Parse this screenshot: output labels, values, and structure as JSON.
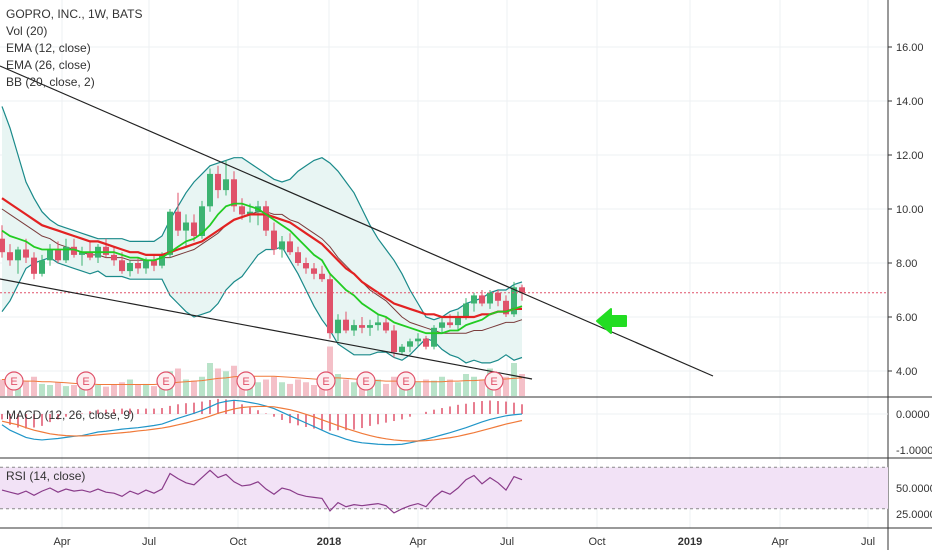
{
  "legend": {
    "symbol": "GOPRO, INC., 1W, BATS",
    "vol": "Vol (20)",
    "ema12": "EMA (12, close)",
    "ema26": "EMA (26, close)",
    "bb": "BB (20, close, 2)"
  },
  "macd_label": "MACD (12, 26, close, 9)",
  "rsi_label": "RSI (14, close)",
  "earnings_marker": "E",
  "colors": {
    "up": "#3cb371",
    "down": "#e0526a",
    "ema12": "#22cc22",
    "ema26": "#e22222",
    "bb": "#1a8a8a",
    "bb_fill": "#e8f5f3",
    "macd": "#2196c8",
    "signal": "#f07a3a",
    "rsi": "#8a3c8a",
    "rsi_band": "#f2e2f6",
    "arrow": "#22dd22",
    "price_line": "#e0526a"
  },
  "chart_data": {
    "type": "candlestick",
    "x_axis_ticks": [
      "Apr",
      "Jul",
      "Oct",
      "2018",
      "Apr",
      "Jul",
      "Oct",
      "2019",
      "Apr",
      "Jul"
    ],
    "price_axis": {
      "ticks": [
        "16.00",
        "14.00",
        "12.00",
        "10.00",
        "8.00",
        "6.00",
        "4.00"
      ],
      "range": [
        3.0,
        17.9
      ]
    },
    "macd_axis": {
      "ticks": [
        "0.0000",
        "-1.0000"
      ]
    },
    "rsi_axis": {
      "ticks": [
        "50.0000",
        "25.0000"
      ],
      "band": [
        30,
        70
      ]
    },
    "current_price": 6.9,
    "candles": [
      [
        8.9,
        9.4,
        8.2,
        8.4
      ],
      [
        8.4,
        8.7,
        7.9,
        8.1
      ],
      [
        8.1,
        8.6,
        7.6,
        8.5
      ],
      [
        8.5,
        8.9,
        8.0,
        8.2
      ],
      [
        8.2,
        8.4,
        7.4,
        7.6
      ],
      [
        7.6,
        8.3,
        7.5,
        8.1
      ],
      [
        8.1,
        8.7,
        7.9,
        8.5
      ],
      [
        8.5,
        8.8,
        8.0,
        8.1
      ],
      [
        8.1,
        8.9,
        8.0,
        8.6
      ],
      [
        8.6,
        8.9,
        8.2,
        8.3
      ],
      [
        8.3,
        8.6,
        7.9,
        8.4
      ],
      [
        8.4,
        8.8,
        8.1,
        8.2
      ],
      [
        8.2,
        8.7,
        8.0,
        8.6
      ],
      [
        8.6,
        8.9,
        8.2,
        8.3
      ],
      [
        8.3,
        8.6,
        7.9,
        8.1
      ],
      [
        8.1,
        8.4,
        7.6,
        7.7
      ],
      [
        7.7,
        8.1,
        7.5,
        8.0
      ],
      [
        8.0,
        8.2,
        7.6,
        7.8
      ],
      [
        7.8,
        8.2,
        7.6,
        8.1
      ],
      [
        8.1,
        8.3,
        7.7,
        7.9
      ],
      [
        7.9,
        8.4,
        7.8,
        8.3
      ],
      [
        8.3,
        10.0,
        8.2,
        9.9
      ],
      [
        9.9,
        10.6,
        9.0,
        9.2
      ],
      [
        9.2,
        9.8,
        8.6,
        9.5
      ],
      [
        9.5,
        9.8,
        8.8,
        9.0
      ],
      [
        9.0,
        10.3,
        8.9,
        10.1
      ],
      [
        10.1,
        11.5,
        9.9,
        11.3
      ],
      [
        11.3,
        11.6,
        10.4,
        10.7
      ],
      [
        10.7,
        11.8,
        10.5,
        11.1
      ],
      [
        11.1,
        11.4,
        9.9,
        10.1
      ],
      [
        10.1,
        10.4,
        9.6,
        9.8
      ],
      [
        9.8,
        10.2,
        9.5,
        9.9
      ],
      [
        9.9,
        10.3,
        9.4,
        10.1
      ],
      [
        10.1,
        10.3,
        9.0,
        9.2
      ],
      [
        9.2,
        9.5,
        8.3,
        8.5
      ],
      [
        8.5,
        9.0,
        8.2,
        8.8
      ],
      [
        8.8,
        9.1,
        8.3,
        8.4
      ],
      [
        8.4,
        8.6,
        7.9,
        8.0
      ],
      [
        8.0,
        8.2,
        7.6,
        7.8
      ],
      [
        7.8,
        8.0,
        7.4,
        7.6
      ],
      [
        7.6,
        7.9,
        7.3,
        7.4
      ],
      [
        7.4,
        7.6,
        5.2,
        5.4
      ],
      [
        5.4,
        6.1,
        5.1,
        5.9
      ],
      [
        5.9,
        6.2,
        5.4,
        5.5
      ],
      [
        5.5,
        5.9,
        5.3,
        5.7
      ],
      [
        5.7,
        6.0,
        5.4,
        5.6
      ],
      [
        5.6,
        5.9,
        5.3,
        5.7
      ],
      [
        5.7,
        6.1,
        5.5,
        5.8
      ],
      [
        5.8,
        6.0,
        5.4,
        5.5
      ],
      [
        5.5,
        5.7,
        4.5,
        4.7
      ],
      [
        4.7,
        5.0,
        4.6,
        4.9
      ],
      [
        4.9,
        5.2,
        4.7,
        5.1
      ],
      [
        5.1,
        5.4,
        4.9,
        5.2
      ],
      [
        5.2,
        5.3,
        4.8,
        4.9
      ],
      [
        4.9,
        5.7,
        4.8,
        5.6
      ],
      [
        5.6,
        6.0,
        5.4,
        5.8
      ],
      [
        5.8,
        6.1,
        5.6,
        5.7
      ],
      [
        5.7,
        6.2,
        5.5,
        6.0
      ],
      [
        6.0,
        6.7,
        5.9,
        6.5
      ],
      [
        6.5,
        6.9,
        6.2,
        6.8
      ],
      [
        6.8,
        7.0,
        6.4,
        6.5
      ],
      [
        6.5,
        7.0,
        6.3,
        6.9
      ],
      [
        6.9,
        7.0,
        6.4,
        6.6
      ],
      [
        6.6,
        6.8,
        6.0,
        6.1
      ],
      [
        6.1,
        7.3,
        6.0,
        7.1
      ],
      [
        7.1,
        7.2,
        6.6,
        6.9
      ]
    ],
    "ema12": [
      9.2,
      9.0,
      8.9,
      8.8,
      8.6,
      8.5,
      8.5,
      8.5,
      8.5,
      8.5,
      8.4,
      8.4,
      8.4,
      8.4,
      8.4,
      8.3,
      8.2,
      8.2,
      8.1,
      8.1,
      8.2,
      8.4,
      8.6,
      8.8,
      8.9,
      9.1,
      9.4,
      9.8,
      10.1,
      10.2,
      10.2,
      10.1,
      10.0,
      9.8,
      9.6,
      9.4,
      9.2,
      8.9,
      8.6,
      8.3,
      8.1,
      7.6,
      7.3,
      7.0,
      6.8,
      6.5,
      6.3,
      6.1,
      6.0,
      5.8,
      5.7,
      5.6,
      5.5,
      5.4,
      5.4,
      5.4,
      5.5,
      5.5,
      5.7,
      5.8,
      5.9,
      6.1,
      6.2,
      6.2,
      6.3,
      6.4
    ],
    "ema26": [
      10.4,
      10.2,
      10.0,
      9.8,
      9.6,
      9.4,
      9.3,
      9.2,
      9.1,
      9.0,
      8.9,
      8.8,
      8.8,
      8.7,
      8.6,
      8.5,
      8.4,
      8.4,
      8.3,
      8.3,
      8.3,
      8.4,
      8.5,
      8.6,
      8.7,
      8.8,
      9.0,
      9.2,
      9.4,
      9.6,
      9.7,
      9.8,
      9.8,
      9.8,
      9.7,
      9.6,
      9.5,
      9.3,
      9.1,
      8.9,
      8.7,
      8.4,
      8.1,
      7.8,
      7.6,
      7.3,
      7.1,
      6.9,
      6.7,
      6.5,
      6.4,
      6.3,
      6.2,
      6.1,
      6.1,
      6.0,
      6.0,
      6.0,
      6.0,
      6.0,
      6.1,
      6.1,
      6.2,
      6.2,
      6.3,
      6.3
    ],
    "bb_basis": [
      10.0,
      9.8,
      9.6,
      9.4,
      9.2,
      9.0,
      8.9,
      8.7,
      8.6,
      8.5,
      8.4,
      8.3,
      8.3,
      8.2,
      8.2,
      8.2,
      8.1,
      8.1,
      8.1,
      8.1,
      8.2,
      8.2,
      8.3,
      8.4,
      8.5,
      8.7,
      8.9,
      9.1,
      9.4,
      9.6,
      9.7,
      9.8,
      9.9,
      9.9,
      9.8,
      9.8,
      9.6,
      9.5,
      9.3,
      9.1,
      8.9,
      8.6,
      8.2,
      7.9,
      7.6,
      7.3,
      7.0,
      6.8,
      6.6,
      6.3,
      6.0,
      5.8,
      5.7,
      5.6,
      5.5,
      5.4,
      5.4,
      5.4,
      5.4,
      5.5,
      5.5,
      5.6,
      5.7,
      5.8,
      5.8,
      5.9
    ],
    "bb_upper": [
      13.8,
      13.0,
      12.0,
      11.0,
      10.4,
      9.9,
      9.6,
      9.4,
      9.3,
      9.2,
      9.1,
      9.0,
      8.9,
      8.9,
      8.9,
      8.9,
      8.8,
      8.8,
      8.8,
      8.8,
      9.0,
      9.6,
      10.1,
      10.6,
      11.0,
      11.3,
      11.6,
      11.7,
      11.8,
      11.9,
      11.9,
      11.7,
      11.5,
      11.3,
      11.1,
      11.0,
      11.1,
      11.4,
      11.6,
      11.8,
      11.9,
      11.7,
      11.4,
      11.0,
      10.6,
      10.0,
      9.4,
      8.9,
      8.5,
      8.1,
      7.6,
      7.0,
      6.5,
      6.0,
      5.9,
      6.0,
      6.2,
      6.3,
      6.5,
      6.6,
      6.7,
      6.9,
      7.0,
      7.0,
      7.2,
      7.3
    ],
    "bb_lower": [
      6.2,
      6.6,
      7.2,
      7.8,
      8.0,
      8.1,
      8.2,
      8.0,
      7.9,
      7.8,
      7.7,
      7.6,
      7.7,
      7.5,
      7.5,
      7.5,
      7.4,
      7.4,
      7.4,
      7.4,
      7.4,
      6.8,
      6.5,
      6.2,
      6.0,
      6.1,
      6.2,
      6.5,
      7.0,
      7.3,
      7.5,
      7.9,
      8.3,
      8.5,
      8.5,
      8.6,
      8.1,
      7.6,
      7.0,
      6.4,
      5.9,
      5.5,
      5.0,
      4.8,
      4.6,
      4.6,
      4.6,
      4.7,
      4.7,
      4.5,
      4.4,
      4.6,
      4.9,
      5.2,
      5.1,
      4.8,
      4.6,
      4.5,
      4.3,
      4.4,
      4.3,
      4.3,
      4.4,
      4.6,
      4.4,
      4.5
    ],
    "volume": [
      0.3,
      0.25,
      0.2,
      0.28,
      0.35,
      0.22,
      0.2,
      0.25,
      0.18,
      0.2,
      0.22,
      0.18,
      0.2,
      0.17,
      0.2,
      0.25,
      0.3,
      0.2,
      0.22,
      0.18,
      0.25,
      0.45,
      0.5,
      0.3,
      0.28,
      0.35,
      0.6,
      0.5,
      0.45,
      0.55,
      0.4,
      0.3,
      0.25,
      0.3,
      0.35,
      0.25,
      0.22,
      0.3,
      0.25,
      0.2,
      0.22,
      0.9,
      0.4,
      0.3,
      0.25,
      0.2,
      0.25,
      0.3,
      0.22,
      0.35,
      0.25,
      0.2,
      0.25,
      0.3,
      0.28,
      0.35,
      0.3,
      0.25,
      0.4,
      0.35,
      0.3,
      0.5,
      0.3,
      0.35,
      0.6,
      0.4
    ],
    "volume_ma": [
      0.3,
      0.3,
      0.28,
      0.27,
      0.27,
      0.26,
      0.26,
      0.25,
      0.24,
      0.23,
      0.22,
      0.22,
      0.21,
      0.21,
      0.21,
      0.21,
      0.21,
      0.21,
      0.21,
      0.21,
      0.22,
      0.23,
      0.25,
      0.26,
      0.27,
      0.28,
      0.3,
      0.32,
      0.33,
      0.35,
      0.36,
      0.36,
      0.36,
      0.36,
      0.36,
      0.35,
      0.34,
      0.33,
      0.32,
      0.31,
      0.3,
      0.33,
      0.33,
      0.32,
      0.31,
      0.3,
      0.29,
      0.28,
      0.27,
      0.27,
      0.27,
      0.26,
      0.26,
      0.26,
      0.26,
      0.26,
      0.27,
      0.27,
      0.28,
      0.28,
      0.29,
      0.3,
      0.3,
      0.31,
      0.32,
      0.33
    ],
    "earnings_idx": [
      1,
      10,
      20,
      30,
      40,
      45,
      50,
      61
    ],
    "macd": [
      -0.3,
      -0.45,
      -0.55,
      -0.65,
      -0.7,
      -0.72,
      -0.7,
      -0.68,
      -0.65,
      -0.62,
      -0.6,
      -0.55,
      -0.5,
      -0.48,
      -0.45,
      -0.42,
      -0.4,
      -0.38,
      -0.35,
      -0.32,
      -0.28,
      -0.2,
      -0.12,
      -0.05,
      0.02,
      0.1,
      0.2,
      0.3,
      0.35,
      0.38,
      0.36,
      0.32,
      0.28,
      0.22,
      0.15,
      0.05,
      -0.05,
      -0.15,
      -0.25,
      -0.35,
      -0.45,
      -0.55,
      -0.62,
      -0.7,
      -0.76,
      -0.8,
      -0.82,
      -0.84,
      -0.85,
      -0.85,
      -0.84,
      -0.8,
      -0.75,
      -0.7,
      -0.64,
      -0.58,
      -0.52,
      -0.45,
      -0.38,
      -0.3,
      -0.22,
      -0.15,
      -0.1,
      -0.05,
      -0.02,
      0.0
    ],
    "macd_signal": [
      -0.2,
      -0.25,
      -0.3,
      -0.38,
      -0.45,
      -0.5,
      -0.55,
      -0.58,
      -0.6,
      -0.61,
      -0.61,
      -0.6,
      -0.58,
      -0.56,
      -0.54,
      -0.52,
      -0.5,
      -0.47,
      -0.45,
      -0.42,
      -0.39,
      -0.35,
      -0.3,
      -0.25,
      -0.19,
      -0.13,
      -0.06,
      0.02,
      0.08,
      0.14,
      0.18,
      0.2,
      0.21,
      0.21,
      0.2,
      0.16,
      0.12,
      0.06,
      -0.01,
      -0.08,
      -0.16,
      -0.24,
      -0.32,
      -0.4,
      -0.47,
      -0.54,
      -0.6,
      -0.65,
      -0.69,
      -0.72,
      -0.74,
      -0.75,
      -0.75,
      -0.74,
      -0.72,
      -0.69,
      -0.66,
      -0.62,
      -0.57,
      -0.52,
      -0.46,
      -0.4,
      -0.34,
      -0.28,
      -0.23,
      -0.18
    ],
    "rsi": [
      48,
      46,
      44,
      47,
      43,
      47,
      50,
      46,
      49,
      47,
      48,
      46,
      49,
      46,
      45,
      42,
      47,
      44,
      48,
      45,
      49,
      64,
      59,
      55,
      53,
      60,
      67,
      60,
      63,
      56,
      52,
      53,
      56,
      49,
      44,
      50,
      48,
      44,
      42,
      41,
      40,
      28,
      36,
      32,
      34,
      33,
      34,
      35,
      33,
      26,
      30,
      33,
      35,
      32,
      41,
      47,
      44,
      50,
      58,
      62,
      54,
      60,
      55,
      48,
      61,
      58
    ]
  }
}
